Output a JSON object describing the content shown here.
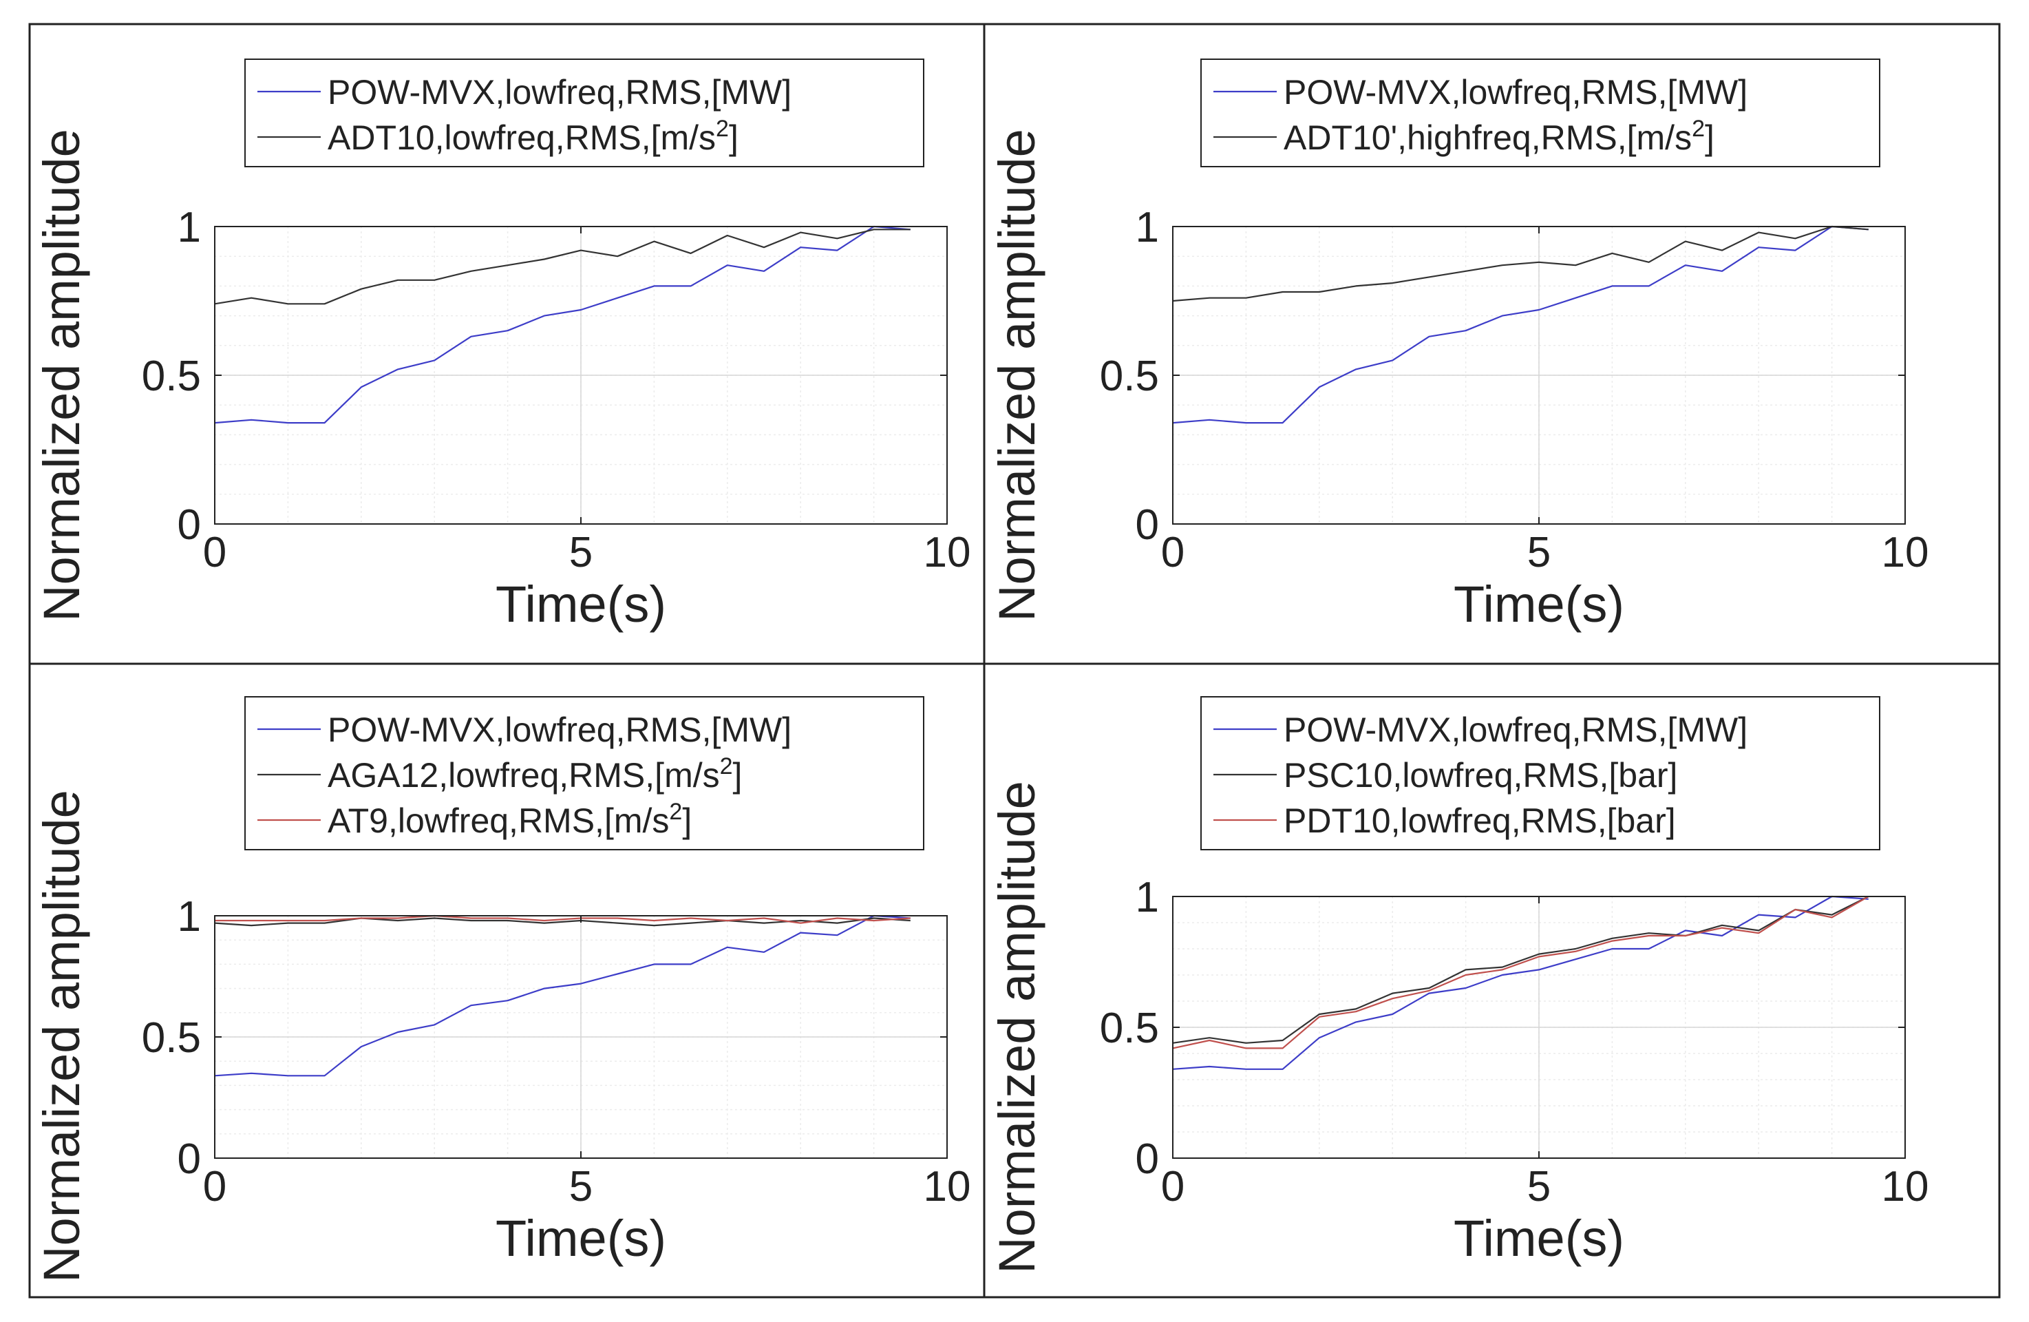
{
  "chart_data": [
    {
      "type": "line",
      "xlabel": "Time(s)",
      "ylabel": "Normalized amplitude",
      "xlim": [
        0,
        10
      ],
      "ylim": [
        0,
        1
      ],
      "xticks": [
        "0",
        "5",
        "10"
      ],
      "yticks": [
        "0",
        "0.5",
        "1"
      ],
      "grid": true,
      "minor_grid": true,
      "legend_position": "top-outside",
      "x": [
        0,
        0.5,
        1,
        1.5,
        2,
        2.5,
        3,
        3.5,
        4,
        4.5,
        5,
        5.5,
        6,
        6.5,
        7,
        7.5,
        8,
        8.5,
        9,
        9.5
      ],
      "series": [
        {
          "name": "POW-MVX,lowfreq,RMS,[MW]",
          "label_base": "POW-MVX,lowfreq,RMS,[MW]",
          "label_sup": "",
          "label_tail": "",
          "color": "#3d3dc8",
          "values": [
            0.34,
            0.35,
            0.34,
            0.34,
            0.46,
            0.52,
            0.55,
            0.63,
            0.65,
            0.7,
            0.72,
            0.76,
            0.8,
            0.8,
            0.87,
            0.85,
            0.93,
            0.92,
            1.0,
            0.99
          ]
        },
        {
          "name": "ADT10,lowfreq,RMS,[m/s2]",
          "label_base": "ADT10,lowfreq,RMS,[m/s",
          "label_sup": "2",
          "label_tail": "]",
          "color": "#333333",
          "values": [
            0.74,
            0.76,
            0.74,
            0.74,
            0.79,
            0.82,
            0.82,
            0.85,
            0.87,
            0.89,
            0.92,
            0.9,
            0.95,
            0.91,
            0.97,
            0.93,
            0.98,
            0.96,
            0.99,
            0.99
          ]
        }
      ]
    },
    {
      "type": "line",
      "xlabel": "Time(s)",
      "ylabel": "Normalized amplitude",
      "xlim": [
        0,
        10
      ],
      "ylim": [
        0,
        1
      ],
      "xticks": [
        "0",
        "5",
        "10"
      ],
      "yticks": [
        "0",
        "0.5",
        "1"
      ],
      "grid": true,
      "minor_grid": true,
      "legend_position": "top-outside",
      "x": [
        0,
        0.5,
        1,
        1.5,
        2,
        2.5,
        3,
        3.5,
        4,
        4.5,
        5,
        5.5,
        6,
        6.5,
        7,
        7.5,
        8,
        8.5,
        9,
        9.5
      ],
      "series": [
        {
          "name": "POW-MVX,lowfreq,RMS,[MW]",
          "label_base": "POW-MVX,lowfreq,RMS,[MW]",
          "label_sup": "",
          "label_tail": "",
          "color": "#3d3dc8",
          "values": [
            0.34,
            0.35,
            0.34,
            0.34,
            0.46,
            0.52,
            0.55,
            0.63,
            0.65,
            0.7,
            0.72,
            0.76,
            0.8,
            0.8,
            0.87,
            0.85,
            0.93,
            0.92,
            1.0,
            0.99
          ]
        },
        {
          "name": "ADT10',highfreq,RMS,[m/s2]",
          "label_base": "ADT10',highfreq,RMS,[m/s",
          "label_sup": "2",
          "label_tail": "]",
          "color": "#333333",
          "values": [
            0.75,
            0.76,
            0.76,
            0.78,
            0.78,
            0.8,
            0.81,
            0.83,
            0.85,
            0.87,
            0.88,
            0.87,
            0.91,
            0.88,
            0.95,
            0.92,
            0.98,
            0.96,
            1.0,
            0.99
          ]
        }
      ]
    },
    {
      "type": "line",
      "xlabel": "Time(s)",
      "ylabel": "Normalized amplitude",
      "xlim": [
        0,
        10
      ],
      "ylim": [
        0,
        1
      ],
      "xticks": [
        "0",
        "5",
        "10"
      ],
      "yticks": [
        "0",
        "0.5",
        "1"
      ],
      "grid": true,
      "minor_grid": true,
      "legend_position": "top-outside",
      "x": [
        0,
        0.5,
        1,
        1.5,
        2,
        2.5,
        3,
        3.5,
        4,
        4.5,
        5,
        5.5,
        6,
        6.5,
        7,
        7.5,
        8,
        8.5,
        9,
        9.5
      ],
      "series": [
        {
          "name": "POW-MVX,lowfreq,RMS,[MW]",
          "label_base": "POW-MVX,lowfreq,RMS,[MW]",
          "label_sup": "",
          "label_tail": "",
          "color": "#3d3dc8",
          "values": [
            0.34,
            0.35,
            0.34,
            0.34,
            0.46,
            0.52,
            0.55,
            0.63,
            0.65,
            0.7,
            0.72,
            0.76,
            0.8,
            0.8,
            0.87,
            0.85,
            0.93,
            0.92,
            1.0,
            0.99
          ]
        },
        {
          "name": "AGA12,lowfreq,RMS,[m/s2]",
          "label_base": "AGA12,lowfreq,RMS,[m/s",
          "label_sup": "2",
          "label_tail": "]",
          "color": "#333333",
          "values": [
            0.97,
            0.96,
            0.97,
            0.97,
            0.99,
            0.98,
            0.99,
            0.98,
            0.98,
            0.97,
            0.98,
            0.97,
            0.96,
            0.97,
            0.98,
            0.97,
            0.98,
            0.97,
            0.99,
            0.98
          ]
        },
        {
          "name": "AT9,lowfreq,RMS,[m/s2]",
          "label_base": "AT9,lowfreq,RMS,[m/s",
          "label_sup": "2",
          "label_tail": "]",
          "color": "#c0504d",
          "values": [
            0.98,
            0.98,
            0.98,
            0.98,
            0.99,
            0.99,
            1.0,
            0.99,
            0.99,
            0.98,
            0.99,
            0.99,
            0.98,
            0.99,
            0.98,
            0.99,
            0.97,
            0.99,
            0.98,
            0.99
          ]
        }
      ]
    },
    {
      "type": "line",
      "xlabel": "Time(s)",
      "ylabel": "Normalized amplitude",
      "xlim": [
        0,
        10
      ],
      "ylim": [
        0,
        1
      ],
      "xticks": [
        "0",
        "5",
        "10"
      ],
      "yticks": [
        "0",
        "0.5",
        "1"
      ],
      "grid": true,
      "minor_grid": true,
      "legend_position": "top-outside",
      "x": [
        0,
        0.5,
        1,
        1.5,
        2,
        2.5,
        3,
        3.5,
        4,
        4.5,
        5,
        5.5,
        6,
        6.5,
        7,
        7.5,
        8,
        8.5,
        9,
        9.5
      ],
      "series": [
        {
          "name": "POW-MVX,lowfreq,RMS,[MW]",
          "label_base": "POW-MVX,lowfreq,RMS,[MW]",
          "label_sup": "",
          "label_tail": "",
          "color": "#3d3dc8",
          "values": [
            0.34,
            0.35,
            0.34,
            0.34,
            0.46,
            0.52,
            0.55,
            0.63,
            0.65,
            0.7,
            0.72,
            0.76,
            0.8,
            0.8,
            0.87,
            0.85,
            0.93,
            0.92,
            1.0,
            0.99
          ]
        },
        {
          "name": "PSC10,lowfreq,RMS,[bar]",
          "label_base": "PSC10,lowfreq,RMS,[bar]",
          "label_sup": "",
          "label_tail": "",
          "color": "#333333",
          "values": [
            0.44,
            0.46,
            0.44,
            0.45,
            0.55,
            0.57,
            0.63,
            0.65,
            0.72,
            0.73,
            0.78,
            0.8,
            0.84,
            0.86,
            0.85,
            0.89,
            0.87,
            0.95,
            0.93,
            1.0
          ]
        },
        {
          "name": "PDT10,lowfreq,RMS,[bar]",
          "label_base": "PDT10,lowfreq,RMS,[bar]",
          "label_sup": "",
          "label_tail": "",
          "color": "#c0504d",
          "values": [
            0.42,
            0.45,
            0.42,
            0.42,
            0.54,
            0.56,
            0.61,
            0.64,
            0.7,
            0.72,
            0.77,
            0.79,
            0.83,
            0.85,
            0.85,
            0.88,
            0.86,
            0.95,
            0.92,
            1.0
          ]
        }
      ]
    }
  ]
}
